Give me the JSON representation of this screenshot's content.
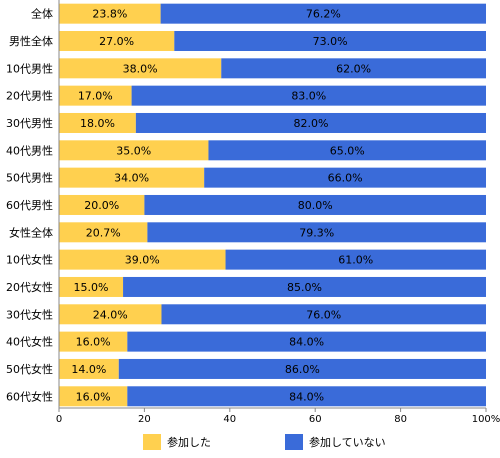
{
  "chart_data": {
    "type": "bar",
    "orientation": "horizontal",
    "stacked": true,
    "categories": [
      "全体",
      "男性全体",
      "10代男性",
      "20代男性",
      "30代男性",
      "40代男性",
      "50代男性",
      "60代男性",
      "女性全体",
      "10代女性",
      "20代女性",
      "30代女性",
      "40代女性",
      "50代女性",
      "60代女性"
    ],
    "series": [
      {
        "name": "参加した",
        "color": "#FFD04F",
        "values": [
          23.8,
          27.0,
          38.0,
          17.0,
          18.0,
          35.0,
          34.0,
          20.0,
          20.7,
          39.0,
          15.0,
          24.0,
          16.0,
          14.0,
          16.0
        ],
        "labels": [
          "23.8%",
          "27.0%",
          "38.0%",
          "17.0%",
          "18.0%",
          "35.0%",
          "34.0%",
          "20.0%",
          "20.7%",
          "39.0%",
          "15.0%",
          "24.0%",
          "16.0%",
          "14.0%",
          "16.0%"
        ]
      },
      {
        "name": "参加していない",
        "color": "#3A6BD9",
        "values": [
          76.2,
          73.0,
          62.0,
          83.0,
          82.0,
          65.0,
          66.0,
          80.0,
          79.3,
          61.0,
          85.0,
          76.0,
          84.0,
          86.0,
          84.0
        ],
        "labels": [
          "76.2%",
          "73.0%",
          "62.0%",
          "83.0%",
          "82.0%",
          "65.0%",
          "66.0%",
          "80.0%",
          "79.3%",
          "61.0%",
          "85.0%",
          "76.0%",
          "84.0%",
          "86.0%",
          "84.0%"
        ]
      }
    ],
    "xlim": [
      0,
      100
    ],
    "xticks": [
      "0",
      "20",
      "40",
      "60",
      "80",
      "100%"
    ],
    "xtick_values": [
      0,
      20,
      40,
      60,
      80,
      100
    ],
    "legend": "bottom",
    "grid": false
  }
}
